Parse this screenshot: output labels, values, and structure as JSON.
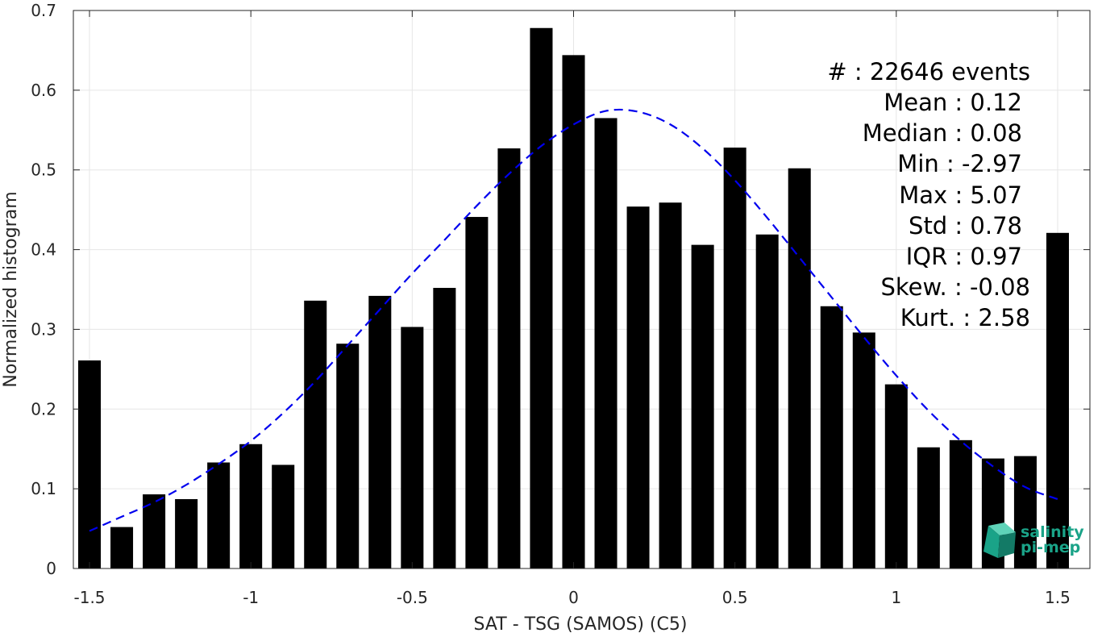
{
  "chart_data": {
    "type": "bar",
    "xlabel": "SAT - TSG (SAMOS) (C5)",
    "ylabel": "Normalized histogram",
    "xlim": [
      -1.55,
      1.6
    ],
    "ylim": [
      0,
      0.7
    ],
    "xticks": [
      -1.5,
      -1,
      -0.5,
      0,
      0.5,
      1,
      1.5
    ],
    "xtick_labels": [
      "-1.5",
      "-1",
      "-0.5",
      "0",
      "0.5",
      "1",
      "1.5"
    ],
    "yticks": [
      0,
      0.1,
      0.2,
      0.3,
      0.4,
      0.5,
      0.6,
      0.7
    ],
    "ytick_labels": [
      "0",
      "0.1",
      "0.2",
      "0.3",
      "0.4",
      "0.5",
      "0.6",
      "0.7"
    ],
    "grid": true,
    "bar_width": 0.07,
    "bar_color": "#000000",
    "x": [
      -1.5,
      -1.4,
      -1.3,
      -1.2,
      -1.1,
      -1.0,
      -0.9,
      -0.8,
      -0.7,
      -0.6,
      -0.5,
      -0.4,
      -0.3,
      -0.2,
      -0.1,
      0.0,
      0.1,
      0.2,
      0.3,
      0.4,
      0.5,
      0.6,
      0.7,
      0.8,
      0.9,
      1.0,
      1.1,
      1.2,
      1.3,
      1.4,
      1.5
    ],
    "values": [
      0.261,
      0.052,
      0.093,
      0.087,
      0.133,
      0.156,
      0.13,
      0.336,
      0.282,
      0.342,
      0.303,
      0.352,
      0.441,
      0.527,
      0.678,
      0.644,
      0.565,
      0.454,
      0.459,
      0.406,
      0.528,
      0.419,
      0.502,
      0.329,
      0.296,
      0.231,
      0.152,
      0.161,
      0.138,
      0.141,
      0.421
    ],
    "fit_curve": {
      "style": "dashed",
      "color": "#0000ee",
      "x": [
        -1.5,
        -1.4,
        -1.3,
        -1.2,
        -1.1,
        -1.0,
        -0.9,
        -0.8,
        -0.7,
        -0.6,
        -0.5,
        -0.4,
        -0.3,
        -0.2,
        -0.1,
        0.0,
        0.1,
        0.2,
        0.3,
        0.4,
        0.5,
        0.6,
        0.7,
        0.8,
        0.9,
        1.0,
        1.1,
        1.2,
        1.3,
        1.4,
        1.5
      ],
      "y": [
        0.047,
        0.065,
        0.083,
        0.105,
        0.131,
        0.16,
        0.195,
        0.235,
        0.28,
        0.325,
        0.37,
        0.412,
        0.455,
        0.495,
        0.53,
        0.557,
        0.574,
        0.573,
        0.557,
        0.527,
        0.487,
        0.44,
        0.39,
        0.34,
        0.29,
        0.242,
        0.198,
        0.16,
        0.128,
        0.102,
        0.087
      ]
    },
    "stats": [
      {
        "label": "#  : 22646 events"
      },
      {
        "label": "Mean : 0.12"
      },
      {
        "label": "Median : 0.08"
      },
      {
        "label": "Min : -2.97"
      },
      {
        "label": "Max : 5.07"
      },
      {
        "label": "Std : 0.78"
      },
      {
        "label": "IQR : 0.97"
      },
      {
        "label": "Skew. : -0.08"
      },
      {
        "label": "Kurt. : 2.58"
      }
    ]
  },
  "logo": {
    "line1": "salinity",
    "line2": "pi-mep",
    "color": "#1aa388"
  }
}
